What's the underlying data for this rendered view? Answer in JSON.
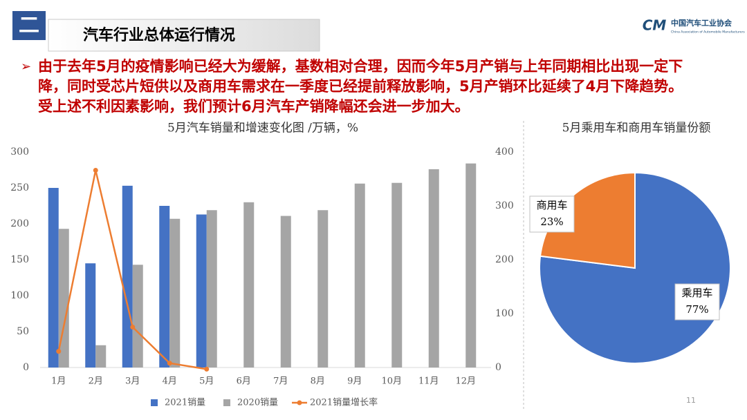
{
  "header": {
    "number": "二",
    "title": "汽车行业总体运行情况",
    "logo_name": "中国汽车工业协会",
    "logo_sub": "China Association of Automobile Manufacturers",
    "logo_mark": "CM"
  },
  "bullet_lines": [
    "由于去年5月的疫情影响已经大为缓解，基数相对合理，因而今年5月产销与上年同期相比出现一定下",
    "降，同时受芯片短供以及商用车需求在一季度已经提前释放影响，5月产销环比延续了4月下降趋势。",
    "受上述不利因素影响，我们预计6月汽车产销降幅还会进一步加大。"
  ],
  "page_number": "11",
  "chart_data": [
    {
      "type": "bar",
      "title": "5月汽车销量和增速变化图  /万辆，%",
      "categories": [
        "1月",
        "2月",
        "3月",
        "4月",
        "5月",
        "6月",
        "7月",
        "8月",
        "9月",
        "10月",
        "11月",
        "12月"
      ],
      "series": [
        {
          "name": "2021销量",
          "color": "#4472c4",
          "values": [
            250,
            145,
            253,
            225,
            213,
            null,
            null,
            null,
            null,
            null,
            null,
            null
          ]
        },
        {
          "name": "2020销量",
          "color": "#a5a5a5",
          "values": [
            193,
            31,
            143,
            207,
            219,
            230,
            211,
            219,
            256,
            257,
            276,
            284
          ]
        },
        {
          "name": "2021销量增长率",
          "color": "#ed7d31",
          "type": "line",
          "axis": "y2",
          "values": [
            30,
            366,
            75,
            8,
            -3,
            null,
            null,
            null,
            null,
            null,
            null,
            null
          ]
        }
      ],
      "ylim": [
        0,
        300
      ],
      "yticks": [
        0,
        50,
        100,
        150,
        200,
        250,
        300
      ],
      "y2lim": [
        0,
        400
      ],
      "y2ticks": [
        0,
        100,
        200,
        300,
        400
      ],
      "legend": "bottom"
    },
    {
      "type": "pie",
      "title": "5月乘用车和商用车销量份额",
      "categories": [
        "乘用车",
        "商用车"
      ],
      "values": [
        77,
        23
      ],
      "value_labels": [
        "77%",
        "23%"
      ],
      "colors": [
        "#4472c4",
        "#ed7d31"
      ]
    }
  ]
}
